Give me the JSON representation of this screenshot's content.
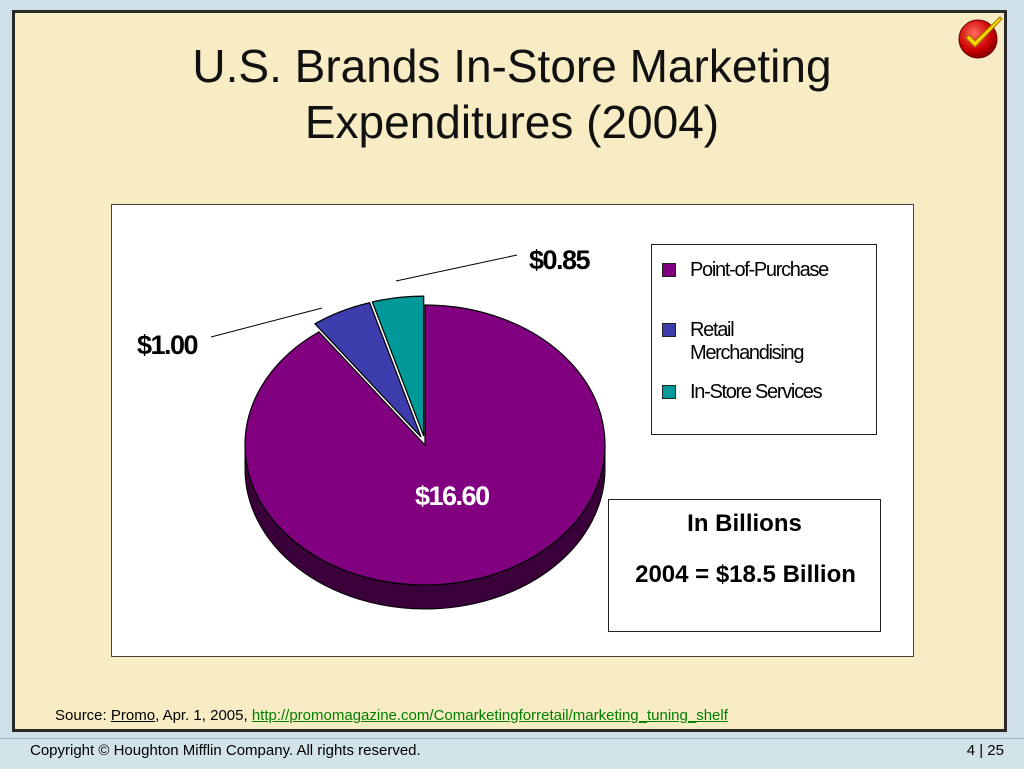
{
  "slide": {
    "title_line1": "U.S. Brands In-Store Marketing",
    "title_line2": "Expenditures (2004)"
  },
  "chart_data": {
    "type": "pie",
    "title": "",
    "units": "In Billions",
    "slices": [
      {
        "name": "Point-of-Purchase",
        "value": 16.6,
        "label": "$16.60",
        "color": "#800080"
      },
      {
        "name": "Retail Merchandising",
        "value": 1.0,
        "label": "$1.00",
        "color": "#3d3dad"
      },
      {
        "name": "In-Store Services",
        "value": 0.85,
        "label": "$0.85",
        "color": "#009999"
      }
    ],
    "legend": {
      "placement": "right",
      "items": [
        "Point-of-Purchase",
        "Retail Merchandising",
        "In-Store Services"
      ]
    }
  },
  "legend_text": {
    "item1": "Point-of-Purchase",
    "item2_line1": "Retail",
    "item2_line2": "Merchandising",
    "item3": "In-Store Services"
  },
  "note": {
    "line1": "In Billions",
    "line2": "2004 = $18.5 Billion"
  },
  "source": {
    "prefix": "Source: ",
    "publication": "Promo",
    "date": ", Apr. 1, 2005, ",
    "url": "http://promomagazine.com/Comarketingforretail/marketing_tuning_shelf"
  },
  "footer": {
    "copyright": "Copyright © Houghton Mifflin Company. All rights reserved.",
    "page": "4 | 25"
  },
  "colors": {
    "background": "#f7ecc4",
    "accent_check": "#cc0000"
  }
}
